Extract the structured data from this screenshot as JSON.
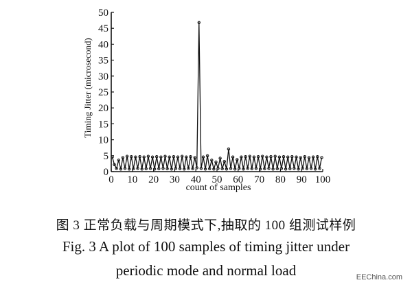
{
  "chart_data": {
    "type": "line",
    "xlabel": "count of samples",
    "ylabel": "Timing Jitter (microsecond)",
    "xlim": [
      0,
      100
    ],
    "ylim": [
      0,
      50
    ],
    "xticks": [
      0,
      10,
      20,
      30,
      40,
      50,
      60,
      70,
      80,
      90,
      100
    ],
    "yticks": [
      0,
      5,
      10,
      15,
      20,
      25,
      30,
      35,
      40,
      45,
      50
    ],
    "grid": false,
    "markers": "circle",
    "x": [
      0,
      1,
      2,
      3,
      4,
      5,
      6,
      7,
      8,
      9,
      10,
      11,
      12,
      13,
      14,
      15,
      16,
      17,
      18,
      19,
      20,
      21,
      22,
      23,
      24,
      25,
      26,
      27,
      28,
      29,
      30,
      31,
      32,
      33,
      34,
      35,
      36,
      37,
      38,
      39,
      40,
      41,
      42,
      43,
      44,
      45,
      46,
      47,
      48,
      49,
      50,
      51,
      52,
      53,
      54,
      55,
      56,
      57,
      58,
      59,
      60,
      61,
      62,
      63,
      64,
      65,
      66,
      67,
      68,
      69,
      70,
      71,
      72,
      73,
      74,
      75,
      76,
      77,
      78,
      79,
      80,
      81,
      82,
      83,
      84,
      85,
      86,
      87,
      88,
      89,
      90,
      91,
      92,
      93,
      94,
      95,
      96,
      97,
      98,
      99
    ],
    "y": [
      4.6,
      2.2,
      1.0,
      3.6,
      0.8,
      4.4,
      1.0,
      4.8,
      0.8,
      4.7,
      0.9,
      4.6,
      1.0,
      4.7,
      0.8,
      4.6,
      0.9,
      4.8,
      1.0,
      4.6,
      0.8,
      4.7,
      0.9,
      4.6,
      1.0,
      4.8,
      0.9,
      4.6,
      0.8,
      4.7,
      1.0,
      4.6,
      0.9,
      4.8,
      0.8,
      4.6,
      1.0,
      4.7,
      0.9,
      4.4,
      1.2,
      46.8,
      1.0,
      4.6,
      0.8,
      5.0,
      0.9,
      3.6,
      0.8,
      3.0,
      1.0,
      4.2,
      0.9,
      3.2,
      0.8,
      7.1,
      1.0,
      4.6,
      0.8,
      3.8,
      1.0,
      4.6,
      0.8,
      4.7,
      1.0,
      4.8,
      0.9,
      4.6,
      1.0,
      4.7,
      0.8,
      4.8,
      0.9,
      4.6,
      1.0,
      4.7,
      0.8,
      4.8,
      0.9,
      4.6,
      1.0,
      4.7,
      0.8,
      4.6,
      0.9,
      4.7,
      1.0,
      4.6,
      0.8,
      4.4,
      1.0,
      4.7,
      0.9,
      4.4,
      1.0,
      4.6,
      0.8,
      4.7,
      1.0,
      4.4
    ]
  },
  "caption": {
    "cn": "图 3   正常负载与周期模式下,抽取的 100 组测试样例",
    "en_line1": "Fig. 3   A plot of 100 samples of timing jitter under",
    "en_line2": "periodic mode and normal load"
  },
  "watermark": "EEChina.com"
}
